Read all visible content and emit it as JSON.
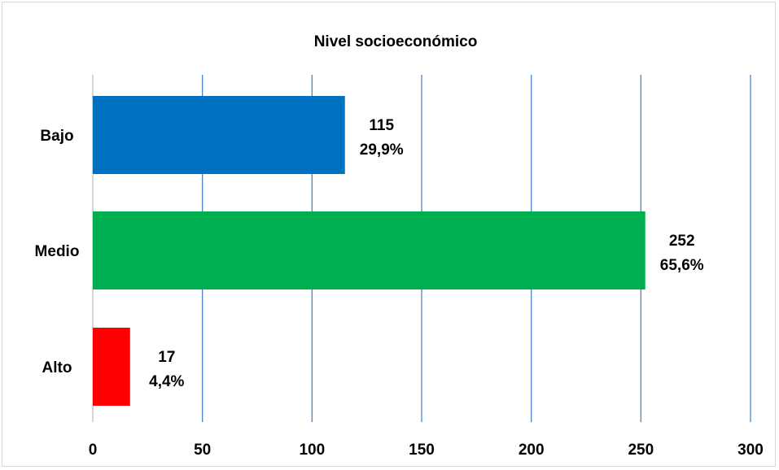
{
  "chart_data": {
    "type": "bar",
    "orientation": "horizontal",
    "title": "Nivel socioeconómico",
    "xlabel": "",
    "ylabel": "",
    "categories": [
      "Bajo",
      "Medio",
      "Alto"
    ],
    "series": [
      {
        "values": [
          115,
          252,
          17
        ],
        "percent_labels": [
          "29,9%",
          "65,6%",
          "4,4%"
        ],
        "colors": [
          "#0070c0",
          "#00b050",
          "#ff0000"
        ]
      }
    ],
    "xlim": [
      0,
      300
    ],
    "xticks": [
      0,
      50,
      100,
      150,
      200,
      250,
      300
    ],
    "grid": "vertical",
    "grid_color": "#4a86c8",
    "legend": "none"
  }
}
